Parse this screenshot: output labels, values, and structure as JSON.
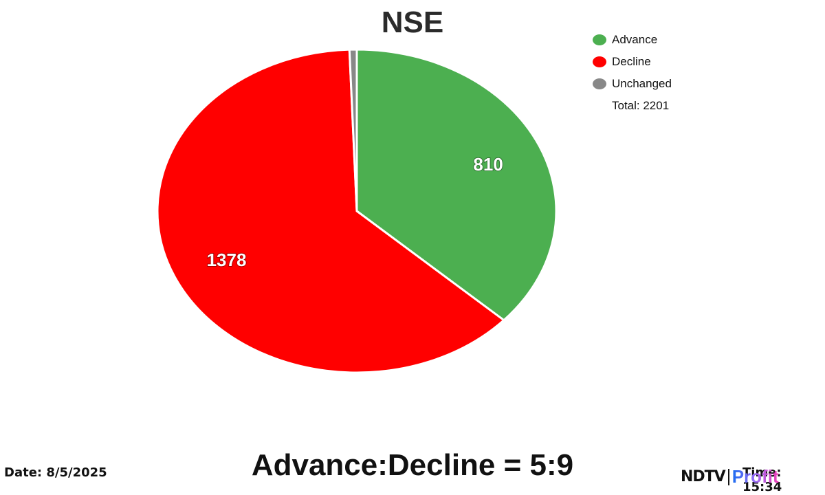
{
  "title": "NSE",
  "legend": {
    "items": [
      {
        "label": "Advance",
        "color": "#4caf50"
      },
      {
        "label": "Decline",
        "color": "#ff0000"
      },
      {
        "label": "Unchanged",
        "color": "#888888"
      }
    ],
    "total": "Total: 2201"
  },
  "footer": {
    "date": "Date: 8/5/2025",
    "ratio": "Advance:Decline = 5:9",
    "time": "Time: 15:34",
    "logo_ndtv": "NDTV",
    "logo_profit": "Profit"
  },
  "chart_data": {
    "type": "pie",
    "title": "NSE",
    "categories": [
      "Advance",
      "Decline",
      "Unchanged"
    ],
    "values": [
      810,
      1378,
      13
    ],
    "colors": [
      "#4caf50",
      "#ff0000",
      "#888888"
    ],
    "total": 2201,
    "data_labels": [
      "810",
      "1378",
      ""
    ],
    "legend_position": "top-right",
    "start_angle": "12 o'clock, clockwise"
  }
}
